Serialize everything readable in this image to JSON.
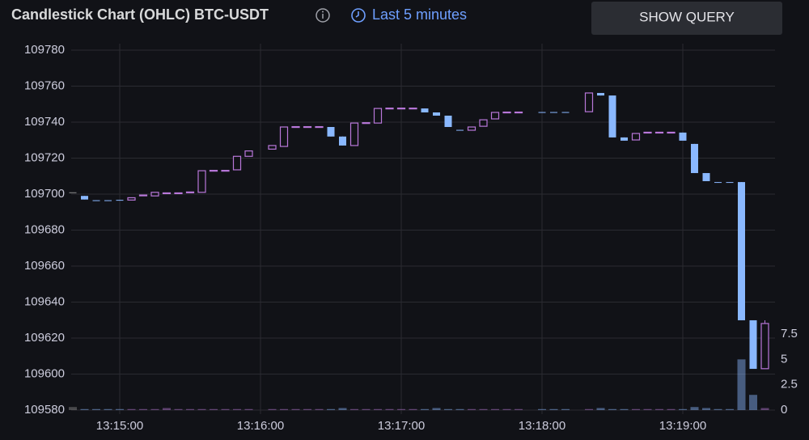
{
  "header": {
    "title": "Candlestick Chart (OHLC) BTC-USDT",
    "time_range": "Last 5 minutes",
    "button": "SHOW QUERY"
  },
  "chart_data": {
    "type": "candlestick",
    "x": [
      "13:14:40",
      "13:14:45",
      "13:14:50",
      "13:14:55",
      "13:15:00",
      "13:15:05",
      "13:15:10",
      "13:15:15",
      "13:15:20",
      "13:15:25",
      "13:15:30",
      "13:15:35",
      "13:15:40",
      "13:15:45",
      "13:15:50",
      "13:15:55",
      "13:16:00",
      "13:16:05",
      "13:16:10",
      "13:16:15",
      "13:16:20",
      "13:16:25",
      "13:16:30",
      "13:16:35",
      "13:16:40",
      "13:16:45",
      "13:16:50",
      "13:16:55",
      "13:17:00",
      "13:17:05",
      "13:17:10",
      "13:17:15",
      "13:17:20",
      "13:17:25",
      "13:17:30",
      "13:17:35",
      "13:17:40",
      "13:17:45",
      "13:17:50",
      "13:17:55",
      "13:18:00",
      "13:18:05",
      "13:18:10",
      "13:18:15",
      "13:18:20",
      "13:18:25",
      "13:18:30",
      "13:18:35",
      "13:18:40",
      "13:18:45",
      "13:18:50",
      "13:18:55",
      "13:19:00",
      "13:19:05",
      "13:19:10",
      "13:19:15",
      "13:19:20",
      "13:19:25",
      "13:19:30",
      "13:19:35"
    ],
    "open": [
      109701,
      109699,
      109696.6,
      109696.6,
      109696.8,
      109696.7,
      109699.3,
      109699,
      109700.5,
      109700.5,
      109701,
      109701,
      109713,
      109713,
      109713.5,
      109721,
      null,
      109725,
      109726.5,
      109737.3,
      109737.3,
      109737.3,
      109737.3,
      109732,
      109727,
      109739.5,
      109739.5,
      109747.6,
      109747.6,
      109747.6,
      109747.6,
      109745.4,
      109743.6,
      109735.7,
      109735.5,
      109737.7,
      109741.8,
      109745.4,
      109745.4,
      null,
      109745.6,
      109745.6,
      109745.6,
      null,
      109745.8,
      109756.2,
      109754.8,
      109731.5,
      109730.1,
      109734.2,
      109734.2,
      109734.2,
      109734.2,
      109727.9,
      109711.7,
      109706.7,
      109706.7,
      109706.7,
      109629.9,
      109603
    ],
    "high": [
      109701,
      109699,
      109696.6,
      109696.6,
      109696.8,
      109698,
      109699.5,
      109701,
      109700.7,
      109700.7,
      109701.2,
      109713,
      109713.2,
      109713.2,
      109721,
      109724,
      null,
      109727,
      109737.3,
      109737.5,
      109737.5,
      109737.5,
      109737.3,
      109732,
      109739.5,
      109739.7,
      109747.6,
      109747.8,
      109747.8,
      109747.8,
      109747.6,
      109745.4,
      109743.6,
      109735.7,
      109737.3,
      109741.3,
      109745.4,
      109745.6,
      109745.6,
      null,
      109745.6,
      109745.6,
      109745.6,
      null,
      109756.2,
      109756.2,
      109754.8,
      109731.5,
      109733.7,
      109734.4,
      109734.4,
      109734.4,
      109734.2,
      109727.9,
      109711.7,
      109706.7,
      109706.7,
      109706.7,
      109629.9,
      109629.9
    ],
    "low": [
      109701,
      109697,
      109696.4,
      109696.4,
      109696.6,
      109696.7,
      109699.3,
      109699,
      109700.5,
      109700.5,
      109701,
      109701,
      109713,
      109713,
      109713.5,
      109721,
      null,
      109725,
      109726.5,
      109737.3,
      109737.3,
      109737.3,
      109732,
      109727,
      109727,
      109739.5,
      109739.5,
      109747.6,
      109747.6,
      109747.6,
      109745.4,
      109743.6,
      109737.3,
      109735.5,
      109735.5,
      109737.7,
      109741.8,
      109745.4,
      109745.4,
      null,
      109745.4,
      109745.4,
      109745.4,
      null,
      109745.8,
      109754.8,
      109731.5,
      109729.7,
      109730.1,
      109734.2,
      109734.2,
      109734.2,
      109729.7,
      109711.7,
      109707.2,
      109706.5,
      109706.5,
      109629.9,
      109602.9,
      109603
    ],
    "close": [
      109701,
      109697,
      109696.4,
      109696.4,
      109696.6,
      109698,
      109699.5,
      109701,
      109700.7,
      109700.7,
      109701.2,
      109713,
      109713.2,
      109713.2,
      109721,
      109724,
      null,
      109727,
      109737.3,
      109737.5,
      109737.5,
      109737.5,
      109732,
      109727,
      109739.5,
      109739.7,
      109747.6,
      109747.8,
      109747.8,
      109747.8,
      109745.4,
      109743.6,
      109737.3,
      109735.5,
      109737.3,
      109741.3,
      109745.4,
      109745.6,
      109745.6,
      null,
      109745.4,
      109745.4,
      109745.4,
      null,
      109756.2,
      109754.8,
      109731.5,
      109729.7,
      109733.7,
      109734.4,
      109734.4,
      109734.4,
      109729.7,
      109711.7,
      109707.2,
      109706.5,
      109706.5,
      109629.9,
      109602.9,
      109628.1
    ],
    "volume": [
      0.3,
      0.1,
      0.1,
      0.1,
      0.1,
      0.1,
      0.1,
      0.1,
      0.2,
      0.1,
      0.1,
      0.1,
      0.1,
      0.1,
      0.1,
      0.1,
      null,
      0.1,
      0.1,
      0.1,
      0.1,
      0.1,
      0.1,
      0.2,
      0.1,
      0.1,
      0.1,
      0.1,
      0.1,
      0.1,
      0.1,
      0.2,
      0.1,
      0.1,
      0.1,
      0.1,
      0.1,
      0.1,
      0.1,
      null,
      0.1,
      0.1,
      0.1,
      null,
      0.1,
      0.2,
      0.1,
      0.1,
      0.1,
      0.1,
      0.1,
      0.1,
      0.1,
      0.3,
      0.2,
      0.1,
      0.1,
      5,
      1.5,
      0.2
    ],
    "up_color": "#b877d9",
    "down_color": "#8ab8ff",
    "flat_color": "#8e8e8e",
    "ylim": [
      109580,
      109780
    ],
    "yticks": [
      109580,
      109600,
      109620,
      109640,
      109660,
      109680,
      109700,
      109720,
      109740,
      109760,
      109780
    ],
    "y2lim": [
      0,
      35.5
    ],
    "y2ticks": [
      0,
      2.5,
      5,
      7.5
    ],
    "xticks": [
      "13:15:00",
      "13:16:00",
      "13:17:00",
      "13:18:00",
      "13:19:00"
    ],
    "grid": true
  }
}
